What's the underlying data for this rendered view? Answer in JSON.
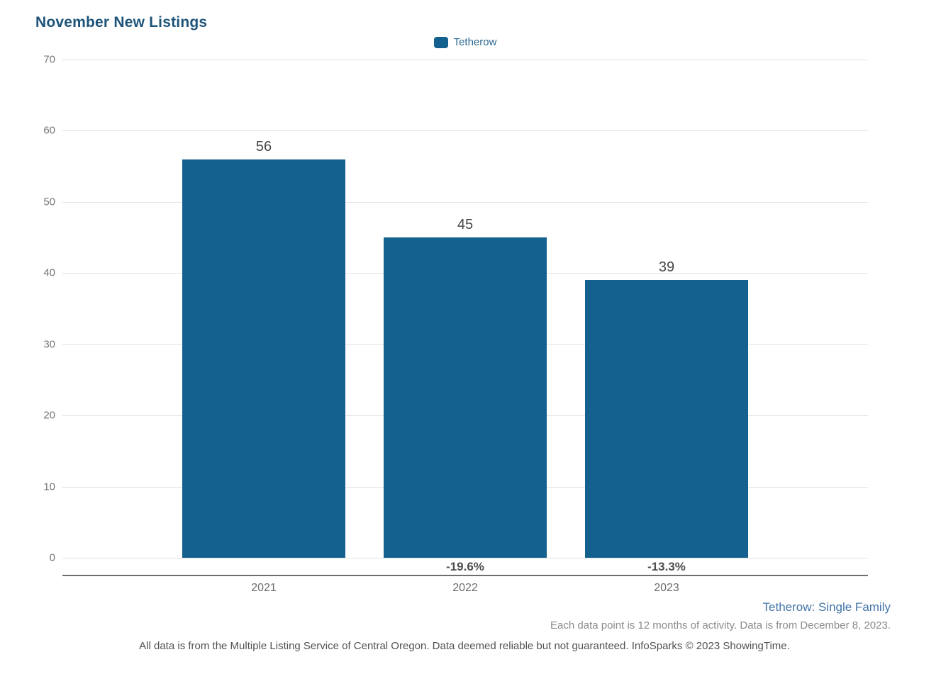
{
  "title": "November New Listings",
  "legend": {
    "label": "Tetherow",
    "swatch_color": "#14618f"
  },
  "chart_data": {
    "type": "bar",
    "title": "November New Listings",
    "categories": [
      "2021",
      "2022",
      "2023"
    ],
    "values": [
      56,
      45,
      39
    ],
    "value_labels": [
      "56",
      "45",
      "39"
    ],
    "pct_change_labels": [
      "",
      "-19.6%",
      "-13.3%"
    ],
    "series": [
      {
        "name": "Tetherow",
        "values": [
          56,
          45,
          39
        ]
      }
    ],
    "xlabel": "",
    "ylabel": "",
    "ylim": [
      0,
      70
    ],
    "yticks": [
      0,
      10,
      20,
      30,
      40,
      50,
      60,
      70
    ],
    "grid": true,
    "legend_position": "top-center",
    "bar_color": "#14618f"
  },
  "footnotes": {
    "series_note": "Tetherow: Single Family",
    "data_note": "Each data point is 12 months of activity. Data is from December 8, 2023.",
    "disclaimer": "All data is from the Multiple Listing Service of Central Oregon. Data deemed reliable but not guaranteed. InfoSparks © 2023 ShowingTime."
  },
  "colors": {
    "title": "#1d5379",
    "bar": "#14618f",
    "link_blue": "#4374a8",
    "gridline": "#e3e3e3",
    "axis_line": "#6e6e6e"
  }
}
